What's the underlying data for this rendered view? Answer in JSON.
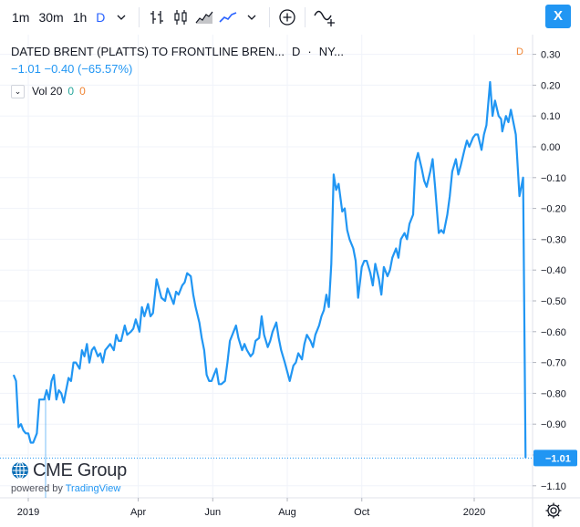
{
  "toolbar": {
    "intervals": [
      "1m",
      "30m",
      "1h",
      "D"
    ],
    "active_interval": "D",
    "close_label": "X"
  },
  "legend": {
    "symbol": "DATED BRENT (PLATTS) TO FRONTLINE BREN...",
    "interval": "D",
    "exchange": "NY...",
    "change": "−1.01 −0.40 (−65.57%)",
    "volume_label": "Vol 20",
    "volume_a": "0",
    "volume_b": "0"
  },
  "right_marker": "D",
  "watermark": {
    "brand": "CME Group",
    "powered_by": "powered by",
    "tradingview": "TradingView"
  },
  "colors": {
    "line": "#2196f3",
    "accent": "#2962ff",
    "grid": "#f0f3fa",
    "last_price_badge": "#2196f3"
  },
  "chart_data": {
    "type": "line",
    "title": "DATED BRENT (PLATTS) TO FRONTLINE BREN...",
    "xlabel": "",
    "ylabel": "",
    "ylim": [
      -1.12,
      0.33
    ],
    "y_ticks": [
      0.3,
      0.2,
      0.1,
      0.0,
      -0.1,
      -0.2,
      -0.3,
      -0.4,
      -0.5,
      -0.6,
      -0.7,
      -0.8,
      -0.9,
      -1.0,
      -1.1
    ],
    "y_tick_labels": [
      "0.30",
      "0.20",
      "0.10",
      "0.00",
      "−0.10",
      "−0.20",
      "−0.30",
      "−0.40",
      "−0.50",
      "−0.60",
      "−0.70",
      "−0.80",
      "−0.90",
      "−1.00",
      "−1.10"
    ],
    "x_ticks": [
      {
        "date": "2019-01-01",
        "label": "2019"
      },
      {
        "date": "2019-04-01",
        "label": "Apr"
      },
      {
        "date": "2019-06-01",
        "label": "Jun"
      },
      {
        "date": "2019-08-01",
        "label": "Aug"
      },
      {
        "date": "2019-10-01",
        "label": "Oct"
      },
      {
        "date": "2020-01-01",
        "label": "2020"
      }
    ],
    "last_value": -1.01,
    "last_value_label": "−1.01",
    "grid": true,
    "series": [
      {
        "x": [
          "2018-12-20",
          "2018-12-22",
          "2018-12-24",
          "2018-12-26",
          "2018-12-28",
          "2018-12-30",
          "2019-01-01",
          "2019-01-03",
          "2019-01-05",
          "2019-01-08",
          "2019-01-10",
          "2019-01-12",
          "2019-01-14",
          "2019-01-16",
          "2019-01-18",
          "2019-01-20",
          "2019-01-22",
          "2019-01-24",
          "2019-01-26",
          "2019-01-28",
          "2019-01-30",
          "2019-02-01",
          "2019-02-03",
          "2019-02-05",
          "2019-02-07",
          "2019-02-09",
          "2019-02-12",
          "2019-02-14",
          "2019-02-16",
          "2019-02-18",
          "2019-02-20",
          "2019-02-22",
          "2019-02-24",
          "2019-02-27",
          "2019-03-01",
          "2019-03-03",
          "2019-03-05",
          "2019-03-07",
          "2019-03-09",
          "2019-03-12",
          "2019-03-14",
          "2019-03-16",
          "2019-03-18",
          "2019-03-21",
          "2019-03-23",
          "2019-03-26",
          "2019-03-28",
          "2019-03-30",
          "2019-04-02",
          "2019-04-04",
          "2019-04-06",
          "2019-04-09",
          "2019-04-11",
          "2019-04-13",
          "2019-04-16",
          "2019-04-18",
          "2019-04-20",
          "2019-04-23",
          "2019-04-25",
          "2019-04-27",
          "2019-04-30",
          "2019-05-02",
          "2019-05-04",
          "2019-05-07",
          "2019-05-09",
          "2019-05-11",
          "2019-05-14",
          "2019-05-16",
          "2019-05-18",
          "2019-05-21",
          "2019-05-23",
          "2019-05-25",
          "2019-05-27",
          "2019-05-29",
          "2019-05-31",
          "2019-06-02",
          "2019-06-04",
          "2019-06-06",
          "2019-06-08",
          "2019-06-11",
          "2019-06-13",
          "2019-06-15",
          "2019-06-18",
          "2019-06-20",
          "2019-06-22",
          "2019-06-25",
          "2019-06-27",
          "2019-06-29",
          "2019-07-02",
          "2019-07-04",
          "2019-07-06",
          "2019-07-09",
          "2019-07-11",
          "2019-07-13",
          "2019-07-16",
          "2019-07-18",
          "2019-07-20",
          "2019-07-23",
          "2019-07-25",
          "2019-07-27",
          "2019-07-30",
          "2019-08-01",
          "2019-08-03",
          "2019-08-06",
          "2019-08-08",
          "2019-08-10",
          "2019-08-13",
          "2019-08-15",
          "2019-08-17",
          "2019-08-20",
          "2019-08-22",
          "2019-08-24",
          "2019-08-27",
          "2019-08-29",
          "2019-08-31",
          "2019-09-02",
          "2019-09-04",
          "2019-09-06",
          "2019-09-08",
          "2019-09-10",
          "2019-09-12",
          "2019-09-15",
          "2019-09-17",
          "2019-09-19",
          "2019-09-21",
          "2019-09-24",
          "2019-09-26",
          "2019-09-28",
          "2019-10-01",
          "2019-10-03",
          "2019-10-05",
          "2019-10-08",
          "2019-10-10",
          "2019-10-12",
          "2019-10-15",
          "2019-10-17",
          "2019-10-19",
          "2019-10-22",
          "2019-10-24",
          "2019-10-26",
          "2019-10-29",
          "2019-10-31",
          "2019-11-02",
          "2019-11-05",
          "2019-11-07",
          "2019-11-09",
          "2019-11-12",
          "2019-11-14",
          "2019-11-16",
          "2019-11-19",
          "2019-11-21",
          "2019-11-23",
          "2019-11-26",
          "2019-11-28",
          "2019-11-30",
          "2019-12-03",
          "2019-12-05",
          "2019-12-07",
          "2019-12-10",
          "2019-12-12",
          "2019-12-14",
          "2019-12-17",
          "2019-12-19",
          "2019-12-21",
          "2019-12-24",
          "2019-12-26",
          "2019-12-28",
          "2019-12-31",
          "2020-01-02",
          "2020-01-04",
          "2020-01-07",
          "2020-01-09",
          "2020-01-11",
          "2020-01-14",
          "2020-01-16",
          "2020-01-18",
          "2020-01-21",
          "2020-01-23",
          "2020-01-24",
          "2020-01-27",
          "2020-01-29",
          "2020-01-31",
          "2020-02-04",
          "2020-02-07",
          "2020-02-10",
          "2020-02-12"
        ],
        "values": [
          -0.74,
          -0.76,
          -0.91,
          -0.9,
          -0.92,
          -0.93,
          -0.93,
          -0.96,
          -0.96,
          -0.93,
          -0.82,
          -0.82,
          -0.82,
          -0.79,
          -0.82,
          -0.76,
          -0.74,
          -0.82,
          -0.79,
          -0.8,
          -0.83,
          -0.79,
          -0.75,
          -0.76,
          -0.7,
          -0.7,
          -0.72,
          -0.66,
          -0.68,
          -0.64,
          -0.7,
          -0.66,
          -0.65,
          -0.68,
          -0.67,
          -0.7,
          -0.66,
          -0.65,
          -0.64,
          -0.66,
          -0.61,
          -0.63,
          -0.63,
          -0.58,
          -0.61,
          -0.6,
          -0.59,
          -0.56,
          -0.6,
          -0.52,
          -0.55,
          -0.51,
          -0.55,
          -0.54,
          -0.43,
          -0.46,
          -0.49,
          -0.5,
          -0.46,
          -0.48,
          -0.51,
          -0.47,
          -0.48,
          -0.45,
          -0.44,
          -0.41,
          -0.42,
          -0.48,
          -0.52,
          -0.57,
          -0.62,
          -0.66,
          -0.74,
          -0.76,
          -0.76,
          -0.74,
          -0.72,
          -0.77,
          -0.77,
          -0.76,
          -0.7,
          -0.63,
          -0.6,
          -0.58,
          -0.62,
          -0.66,
          -0.64,
          -0.66,
          -0.68,
          -0.67,
          -0.63,
          -0.62,
          -0.55,
          -0.61,
          -0.65,
          -0.63,
          -0.6,
          -0.57,
          -0.62,
          -0.66,
          -0.7,
          -0.73,
          -0.76,
          -0.71,
          -0.7,
          -0.67,
          -0.69,
          -0.64,
          -0.61,
          -0.63,
          -0.65,
          -0.61,
          -0.58,
          -0.55,
          -0.53,
          -0.48,
          -0.52,
          -0.38,
          -0.09,
          -0.14,
          -0.12,
          -0.21,
          -0.2,
          -0.27,
          -0.3,
          -0.33,
          -0.37,
          -0.49,
          -0.39,
          -0.37,
          -0.37,
          -0.41,
          -0.45,
          -0.38,
          -0.43,
          -0.48,
          -0.39,
          -0.42,
          -0.4,
          -0.36,
          -0.33,
          -0.36,
          -0.3,
          -0.28,
          -0.3,
          -0.25,
          -0.22,
          -0.05,
          -0.02,
          -0.07,
          -0.11,
          -0.13,
          -0.08,
          -0.04,
          -0.13,
          -0.28,
          -0.27,
          -0.28,
          -0.22,
          -0.16,
          -0.08,
          -0.04,
          -0.09,
          -0.06,
          -0.01,
          0.02,
          0.0,
          0.03,
          0.04,
          0.04,
          -0.01,
          0.04,
          0.07,
          0.21,
          0.1,
          0.15,
          0.1,
          0.09,
          0.05,
          0.1,
          0.08,
          0.12,
          0.04,
          -0.16,
          -0.1,
          -1.01
        ]
      }
    ]
  }
}
